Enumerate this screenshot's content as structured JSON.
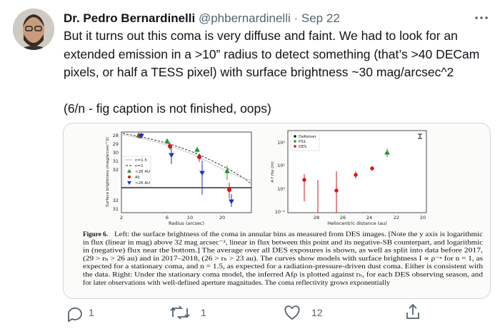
{
  "tweet": {
    "name": "Dr. Pedro Bernardinelli",
    "handle": "@phbernardinelli",
    "separator": "·",
    "date": "Sep 22",
    "text_lines": [
      "But it turns out this coma is very diffuse and faint. We had to look for an",
      "extended emission in a >10” radius to detect something (that’s >40 DECam",
      "pixels, or half a TESS pixel) with surface brightness ~30 mag/arcsec^2",
      "(6/n - fig caption is not finished, oops)"
    ],
    "replies": "1",
    "retweets": "1",
    "likes": "12"
  },
  "figure": {
    "left": {
      "ylabel": "Surface brightness (mag/arcsec^2)",
      "xlabel": "Radius (arcsec)",
      "yticks": [
        "28",
        "29",
        "30",
        "31",
        "32",
        "32",
        "31"
      ],
      "xticks": [
        "2",
        "6",
        "10",
        "20"
      ],
      "legend": [
        "n=1.5",
        "n=1",
        "<26 AU",
        "All",
        ">26 AU"
      ]
    },
    "right": {
      "ylabel": "A f rho (m)",
      "xlabel": "Heliocentric distance (au)",
      "yticks": [
        "10²",
        "10¹",
        "10⁰",
        "10⁻¹"
      ],
      "xticks": [
        "28",
        "26",
        "24",
        "22",
        "20"
      ],
      "legend": [
        "DeKelver",
        "PS1",
        "DES"
      ]
    },
    "caption_label": "Figure 6.",
    "caption_lines": [
      "Left: the surface brightness of the coma in annular bins as measured from DES images. [Note the y axis is logarithmic",
      "in flux (linear in mag) above 32 mag arcsec⁻², linear in flux between this point and its negative-SB counterpart, and logarithmic",
      "in (negative) flux near the bottom.]  The average over all DES exposures is shown, as well as split into data before 2017,",
      "(29 > rₕ > 26 au) and in 2017–2018, (26 > rₕ > 23 au). The curves show models with surface brightness I ∝ ρ⁻ⁿ for n = 1, as",
      "expected for a stationary coma, and n = 1.5, as expected for a radiation-pressure-driven dust coma.  Either is consistent with",
      "the data.  Right: Under the stationary coma model, the inferred Afρ is plotted against rₕ, for each DES observing season, and",
      "for later observations with well-defined aperture magnitudes. The coma reflectivity grows exponentially"
    ]
  }
}
